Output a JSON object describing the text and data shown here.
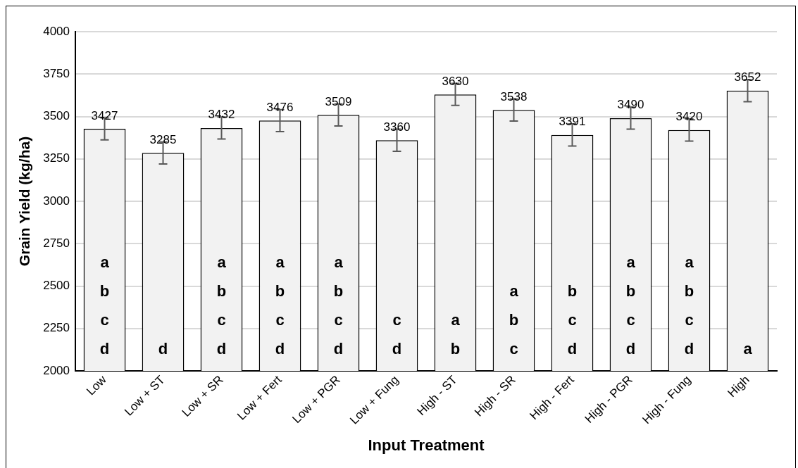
{
  "chart_data": {
    "type": "bar",
    "xlabel": "Input Treatment",
    "ylabel": "Grain Yield (kg/ha)",
    "categories": [
      "Low",
      "Low + ST",
      "Low + SR",
      "Low + Fert",
      "Low + PGR",
      "Low + Fung",
      "High - ST",
      "High - SR",
      "High - Fert",
      "High - PGR",
      "High - Fung",
      "High"
    ],
    "values": [
      3427,
      3285,
      3432,
      3476,
      3509,
      3360,
      3630,
      3538,
      3391,
      3490,
      3420,
      3652
    ],
    "errors": [
      65,
      65,
      65,
      65,
      65,
      65,
      65,
      65,
      65,
      65,
      65,
      65
    ],
    "color": "#f2f2f2",
    "data_labels": true,
    "ylim": [
      2000,
      4000
    ],
    "yticks": [
      2000,
      2250,
      2500,
      2750,
      3000,
      3250,
      3500,
      3750,
      4000
    ],
    "grid": "y",
    "annotations": [
      "a\nb\nc\nd",
      "d",
      "a\nb\nc\nd",
      "a\nb\nc\nd",
      "a\nb\nc\nd",
      "c\nd",
      "a\nb",
      "a\nb\nc",
      "b\nc\nd",
      "a\nb\nc\nd",
      "a\nb\nc\nd",
      "a"
    ]
  }
}
